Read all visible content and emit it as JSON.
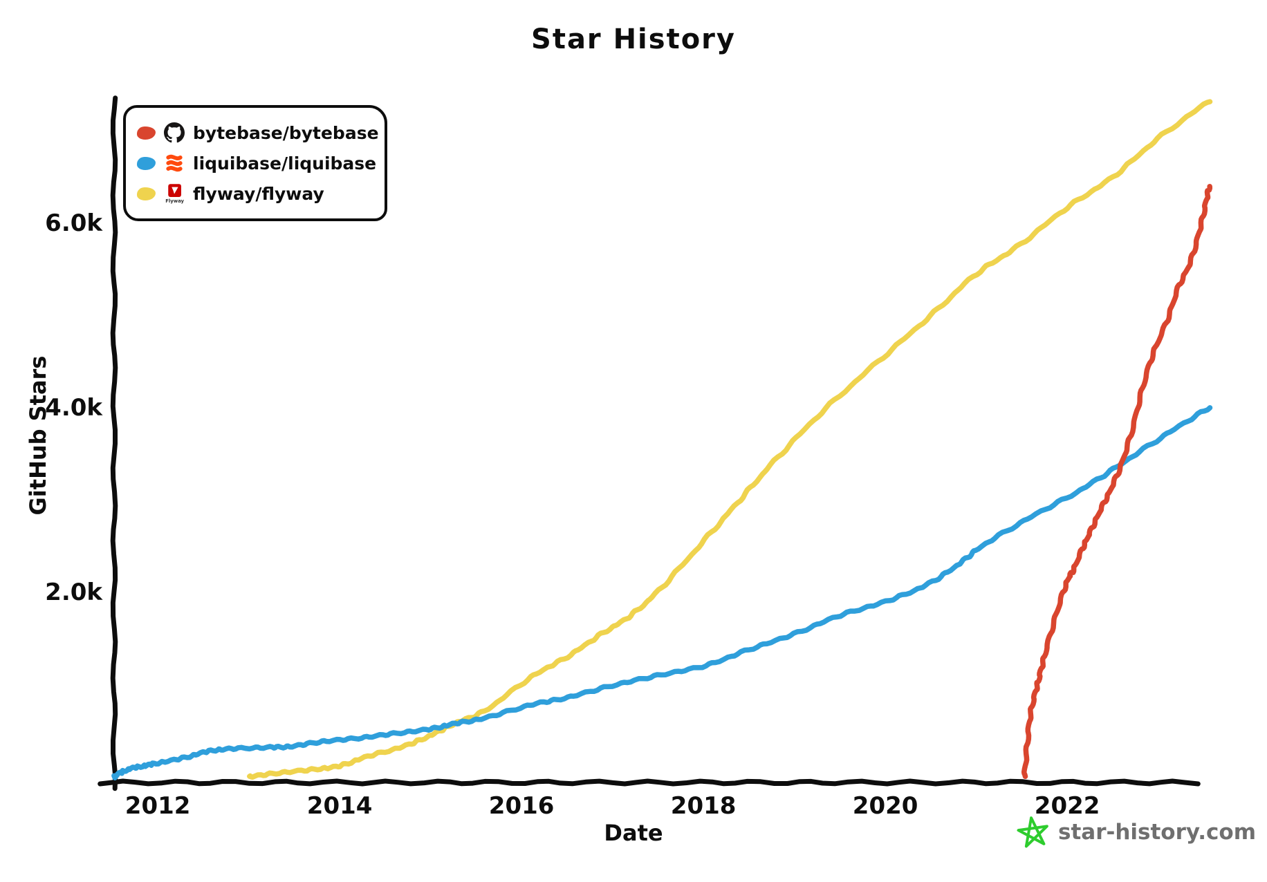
{
  "title": "Star History",
  "y_axis_label": "GitHub Stars",
  "x_axis_label": "Date",
  "watermark": {
    "text": "star-history.com",
    "star_color": "#2ecc2e",
    "text_color": "#6f6f6f"
  },
  "legend": [
    {
      "label": "bytebase/bytebase",
      "color": "#d9452e",
      "icon": "github-icon"
    },
    {
      "label": "liquibase/liquibase",
      "color": "#2f9fdb",
      "icon": "liquibase-icon"
    },
    {
      "label": "flyway/flyway",
      "color": "#efd34e",
      "icon": "flyway-icon"
    }
  ],
  "chart_data": {
    "type": "line",
    "title": "Star History",
    "xlabel": "Date",
    "ylabel": "GitHub Stars",
    "grid": false,
    "legend_position": "top-left",
    "x_range": [
      2011.52,
      2023.75
    ],
    "y_range": [
      0,
      7550
    ],
    "x_ticks": [
      2012,
      2014,
      2016,
      2018,
      2020,
      2022
    ],
    "y_ticks": [
      {
        "value": 2000,
        "label": "2.0k"
      },
      {
        "value": 4000,
        "label": "4.0k"
      },
      {
        "value": 6000,
        "label": "6.0k"
      }
    ],
    "series": [
      {
        "name": "flyway/flyway",
        "color": "#efd34e",
        "points": [
          [
            2013.0,
            0
          ],
          [
            2013.3,
            40
          ],
          [
            2013.7,
            80
          ],
          [
            2014.0,
            120
          ],
          [
            2014.3,
            220
          ],
          [
            2014.7,
            330
          ],
          [
            2015.0,
            450
          ],
          [
            2015.26,
            577
          ],
          [
            2015.6,
            720
          ],
          [
            2016.1,
            1078
          ],
          [
            2016.5,
            1300
          ],
          [
            2016.88,
            1550
          ],
          [
            2017.2,
            1750
          ],
          [
            2017.54,
            2052
          ],
          [
            2018.02,
            2576
          ],
          [
            2018.4,
            3000
          ],
          [
            2018.78,
            3423
          ],
          [
            2019.3,
            3950
          ],
          [
            2019.92,
            4501
          ],
          [
            2020.5,
            5000
          ],
          [
            2021.0,
            5450
          ],
          [
            2021.45,
            5745
          ],
          [
            2022.0,
            6170
          ],
          [
            2022.5,
            6500
          ],
          [
            2023.0,
            6920
          ],
          [
            2023.56,
            7325
          ]
        ]
      },
      {
        "name": "liquibase/liquibase",
        "color": "#2f9fdb",
        "points": [
          [
            2011.52,
            0
          ],
          [
            2011.58,
            40
          ],
          [
            2011.7,
            90
          ],
          [
            2011.85,
            120
          ],
          [
            2012.0,
            150
          ],
          [
            2012.3,
            210
          ],
          [
            2012.55,
            277
          ],
          [
            2012.8,
            305
          ],
          [
            2013.2,
            320
          ],
          [
            2013.46,
            330
          ],
          [
            2013.8,
            382
          ],
          [
            2014.2,
            420
          ],
          [
            2014.6,
            470
          ],
          [
            2015.0,
            520
          ],
          [
            2015.26,
            577
          ],
          [
            2015.6,
            640
          ],
          [
            2016.1,
            780
          ],
          [
            2016.5,
            860
          ],
          [
            2017.0,
            990
          ],
          [
            2017.5,
            1100
          ],
          [
            2018.02,
            1206
          ],
          [
            2018.5,
            1380
          ],
          [
            2019.0,
            1550
          ],
          [
            2019.5,
            1750
          ],
          [
            2020.0,
            1900
          ],
          [
            2020.45,
            2080
          ],
          [
            2020.8,
            2300
          ],
          [
            2021.06,
            2500
          ],
          [
            2021.57,
            2800
          ],
          [
            2022.13,
            3100
          ],
          [
            2022.59,
            3390
          ],
          [
            2023.1,
            3720
          ],
          [
            2023.56,
            4000
          ]
        ]
      },
      {
        "name": "bytebase/bytebase",
        "color": "#d9452e",
        "points": [
          [
            2021.53,
            0
          ],
          [
            2021.56,
            350
          ],
          [
            2021.6,
            700
          ],
          [
            2021.66,
            950
          ],
          [
            2021.71,
            1150
          ],
          [
            2021.78,
            1420
          ],
          [
            2021.9,
            1830
          ],
          [
            2022.0,
            2120
          ],
          [
            2022.07,
            2250
          ],
          [
            2022.17,
            2480
          ],
          [
            2022.26,
            2670
          ],
          [
            2022.37,
            2900
          ],
          [
            2022.48,
            3120
          ],
          [
            2022.6,
            3400
          ],
          [
            2022.72,
            3780
          ],
          [
            2022.83,
            4220
          ],
          [
            2022.95,
            4600
          ],
          [
            2023.1,
            4950
          ],
          [
            2023.22,
            5300
          ],
          [
            2023.35,
            5570
          ],
          [
            2023.45,
            5900
          ],
          [
            2023.52,
            6200
          ],
          [
            2023.56,
            6390
          ]
        ]
      }
    ]
  }
}
